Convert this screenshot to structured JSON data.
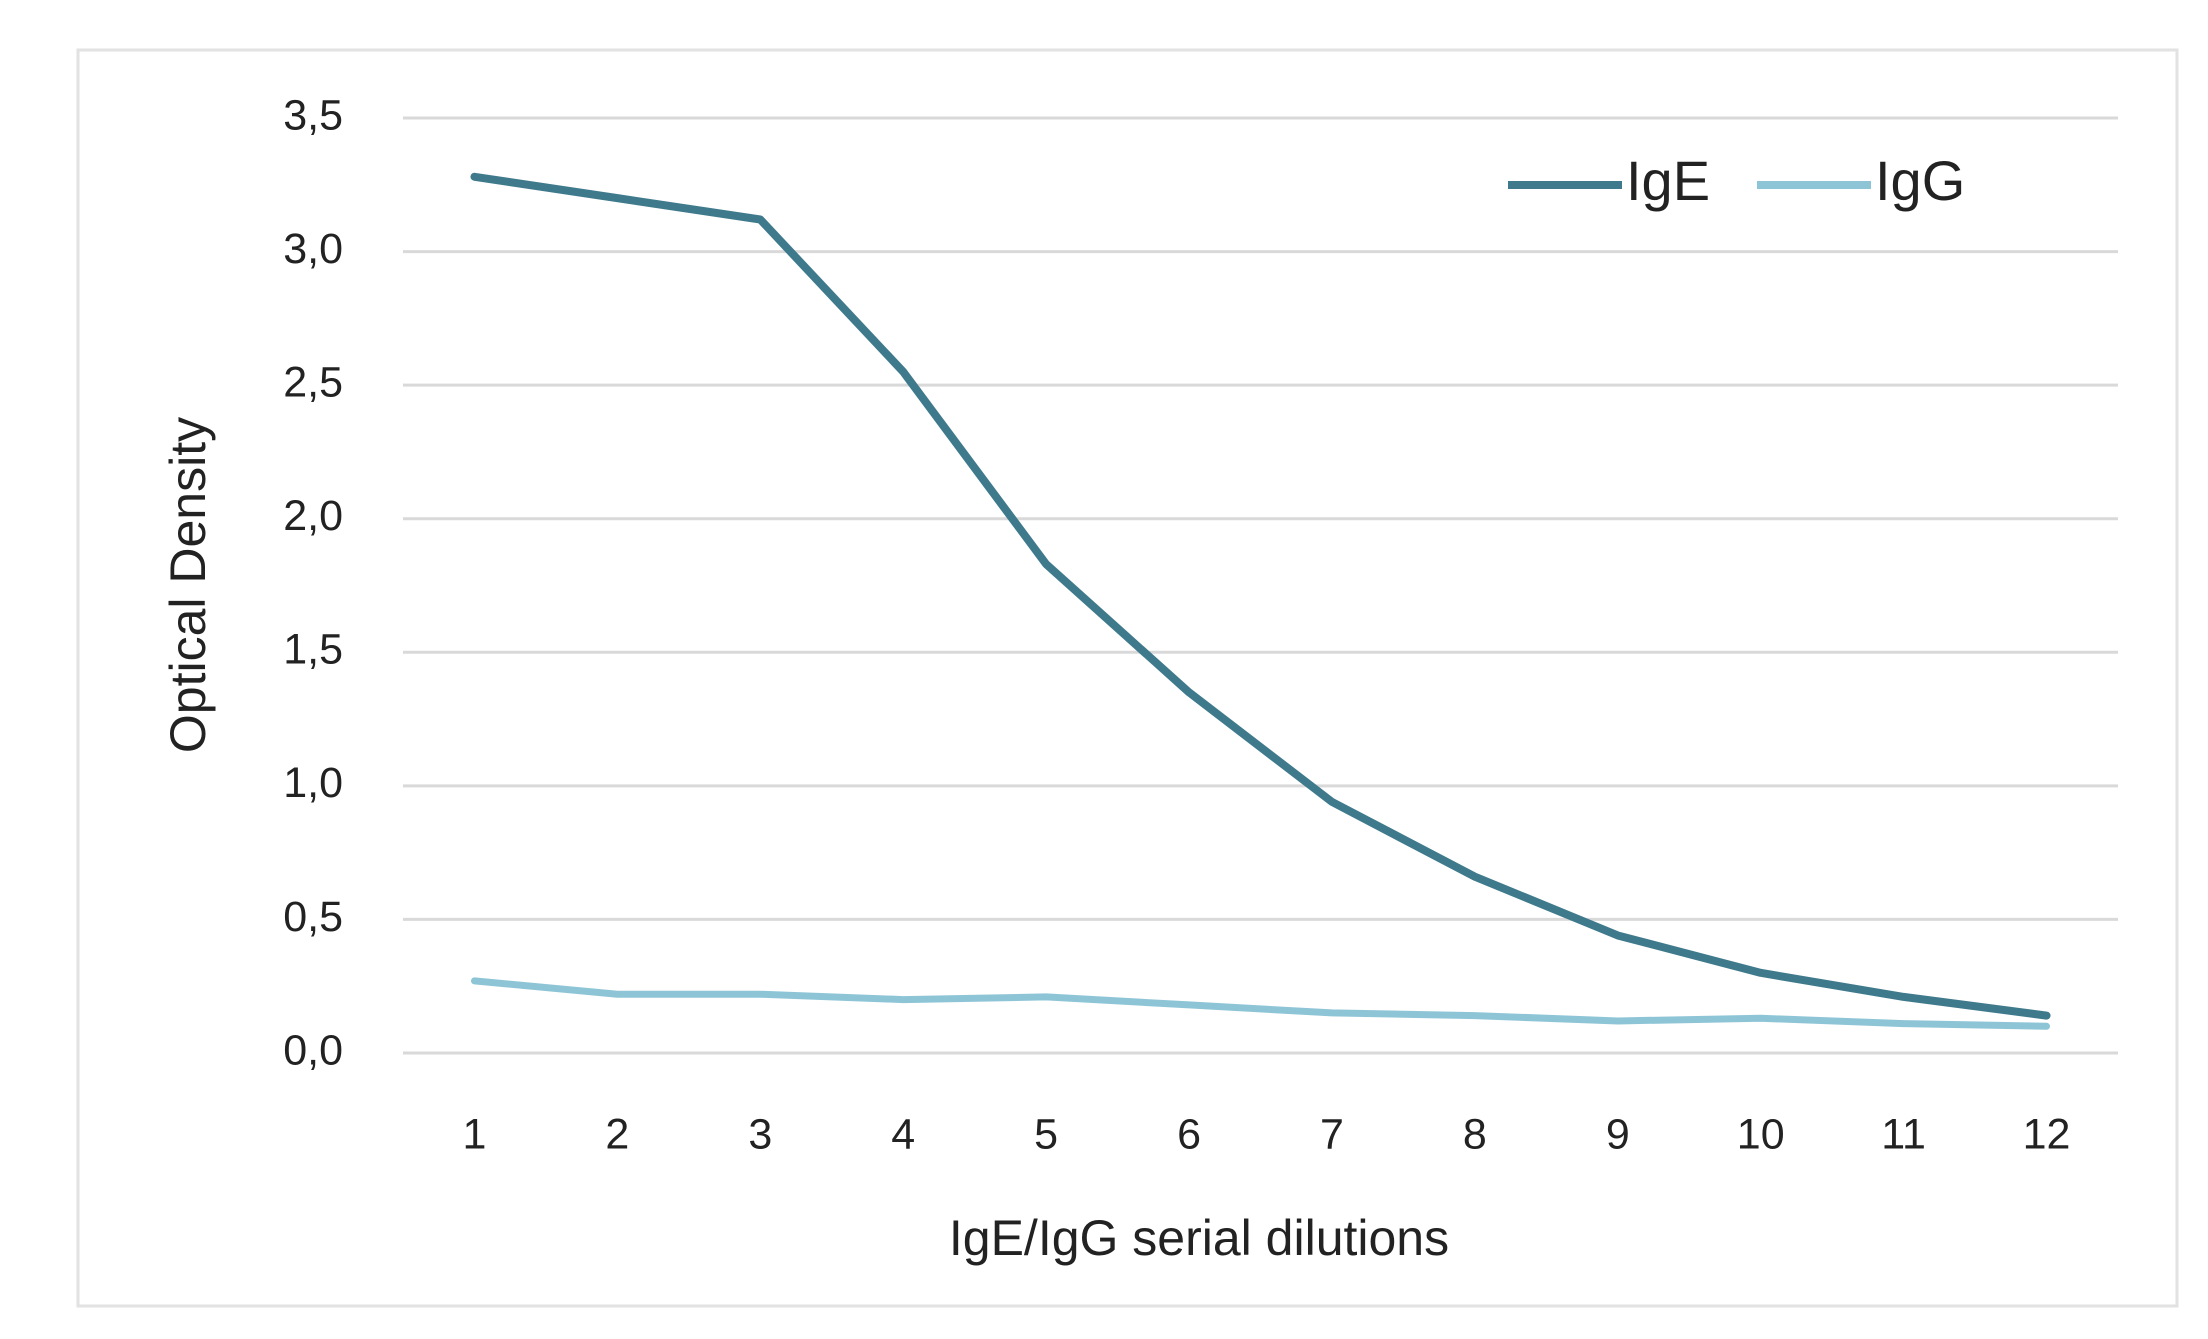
{
  "chart_data": {
    "type": "line",
    "x_label": "IgE/IgG serial dilutions",
    "y_label": "Optical Density",
    "categories": [
      "1",
      "2",
      "3",
      "4",
      "5",
      "6",
      "7",
      "8",
      "9",
      "10",
      "11",
      "12"
    ],
    "series": [
      {
        "name": "IgE",
        "color": "#3f7a8c",
        "values": [
          3.28,
          3.2,
          3.12,
          2.55,
          1.83,
          1.35,
          0.94,
          0.66,
          0.44,
          0.3,
          0.21,
          0.14
        ]
      },
      {
        "name": "IgG",
        "color": "#8ec5d6",
        "values": [
          0.27,
          0.22,
          0.22,
          0.2,
          0.21,
          0.18,
          0.15,
          0.14,
          0.12,
          0.13,
          0.11,
          0.1
        ]
      }
    ],
    "ylim": [
      0,
      3.5
    ],
    "yticks": [
      {
        "value": 0,
        "label": "0,0"
      },
      {
        "value": 0.5,
        "label": "0,5"
      },
      {
        "value": 1,
        "label": "1,0"
      },
      {
        "value": 1.5,
        "label": "1,5"
      },
      {
        "value": 2,
        "label": "2,0"
      },
      {
        "value": 2.5,
        "label": "2,5"
      },
      {
        "value": 3,
        "label": "3,0"
      },
      {
        "value": 3.5,
        "label": "3,5"
      }
    ],
    "grid": true,
    "legend": "top-right"
  }
}
